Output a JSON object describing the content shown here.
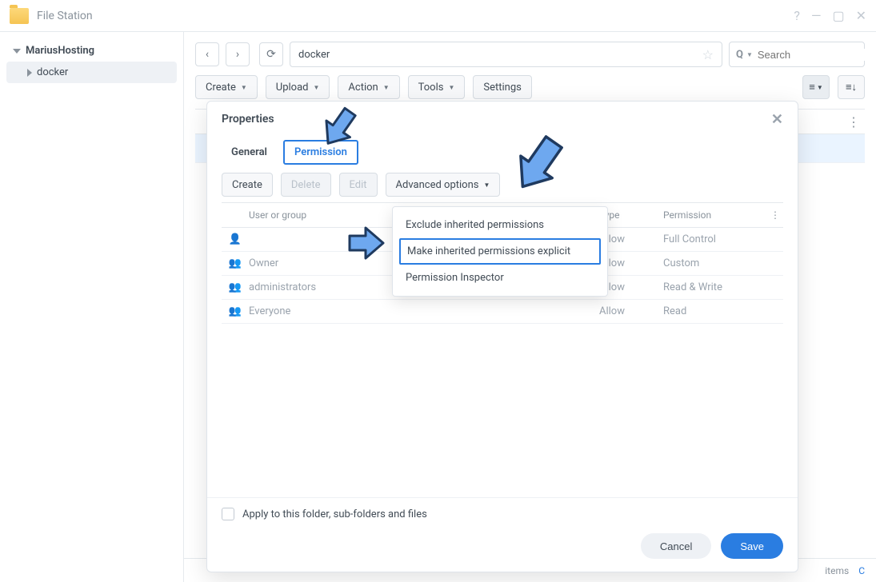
{
  "app": {
    "title": "File Station"
  },
  "sidebar": {
    "root": "MariusHosting",
    "items": [
      "docker"
    ]
  },
  "toolbar": {
    "path": "docker",
    "search_placeholder": "Search",
    "buttons": {
      "create": "Create",
      "upload": "Upload",
      "action": "Action",
      "tools": "Tools",
      "settings": "Settings"
    }
  },
  "footer": {
    "items_label": "items"
  },
  "dialog": {
    "title": "Properties",
    "tabs": {
      "general": "General",
      "permission": "Permission"
    },
    "toolbar": {
      "create": "Create",
      "delete": "Delete",
      "edit": "Edit",
      "advanced": "Advanced options"
    },
    "columns": {
      "user": "User or group",
      "type": "Type",
      "perm": "Permission"
    },
    "rows": [
      {
        "icon": "user",
        "user": "",
        "type": "Allow",
        "perm": "Full Control"
      },
      {
        "icon": "group",
        "user": "Owner",
        "type": "Allow",
        "perm": "Custom"
      },
      {
        "icon": "group",
        "user": "administrators",
        "type": "Allow",
        "perm": "Read & Write"
      },
      {
        "icon": "group",
        "user": "Everyone",
        "type": "Allow",
        "perm": "Read"
      }
    ],
    "apply_label": "Apply to this folder, sub-folders and files",
    "cancel": "Cancel",
    "save": "Save"
  },
  "dropdown": {
    "items": [
      "Exclude inherited permissions",
      "Make inherited permissions explicit",
      "Permission Inspector"
    ],
    "highlight_index": 1
  },
  "colors": {
    "accent": "#2a7de1",
    "arrow_fill": "#6ea8ef",
    "arrow_stroke": "#1f3a5f"
  }
}
